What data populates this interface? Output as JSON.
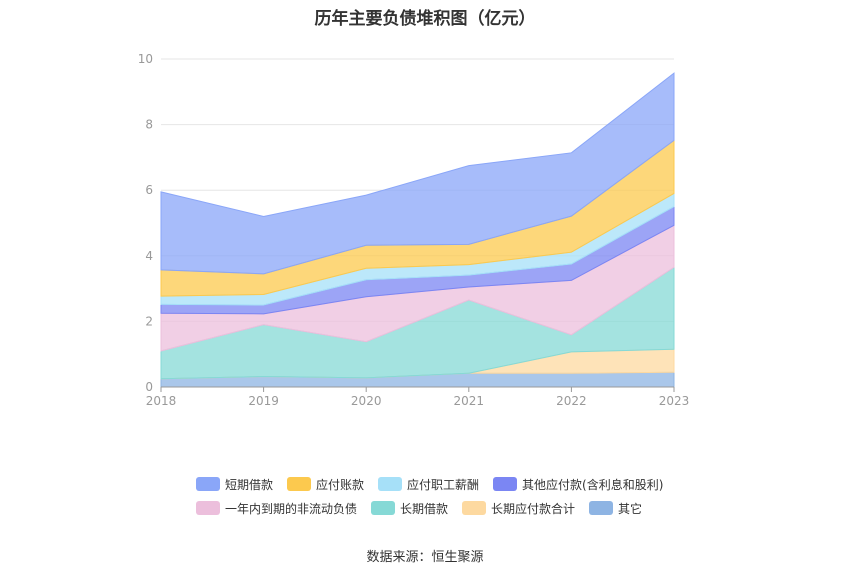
{
  "chart_data": {
    "type": "area",
    "stacked": true,
    "title": "历年主要负债堆积图（亿元）",
    "x": [
      "2018",
      "2019",
      "2020",
      "2021",
      "2022",
      "2023"
    ],
    "ylim": [
      0,
      10
    ],
    "yticks": [
      "0",
      "2",
      "4",
      "6",
      "8",
      "10"
    ],
    "grid": true,
    "legend_position": "bottom",
    "series": [
      {
        "name": "其它",
        "color": "#8eb4e3",
        "values": [
          0.25,
          0.32,
          0.28,
          0.42,
          0.42,
          0.45
        ]
      },
      {
        "name": "长期应付款合计",
        "color": "#fdd9a0",
        "values": [
          0.0,
          0.0,
          0.0,
          0.0,
          0.65,
          0.7
        ]
      },
      {
        "name": "长期借款",
        "color": "#86d9d6",
        "values": [
          0.85,
          1.58,
          1.1,
          2.23,
          0.52,
          2.5
        ]
      },
      {
        "name": "一年内到期的非流动负债",
        "color": "#ecbfdc",
        "values": [
          1.15,
          0.33,
          1.37,
          0.4,
          1.66,
          1.28
        ]
      },
      {
        "name": "其他应付款(含利息和股利)",
        "color": "#7b86f3",
        "values": [
          0.27,
          0.27,
          0.52,
          0.36,
          0.5,
          0.57
        ]
      },
      {
        "name": "应付职工薪酬",
        "color": "#a6e0f8",
        "values": [
          0.25,
          0.32,
          0.35,
          0.32,
          0.36,
          0.4
        ]
      },
      {
        "name": "应付账款",
        "color": "#fcc94e",
        "values": [
          0.8,
          0.63,
          0.7,
          0.62,
          1.1,
          1.62
        ]
      },
      {
        "name": "短期借款",
        "color": "#8aa6f8",
        "values": [
          2.38,
          1.75,
          1.53,
          2.4,
          1.93,
          2.05
        ]
      }
    ],
    "legend_rows": [
      [
        "短期借款",
        "应付账款",
        "应付职工薪酬",
        "其他应付款(含利息和股利)"
      ],
      [
        "一年内到期的非流动负债",
        "长期借款",
        "长期应付款合计",
        "其它"
      ]
    ]
  },
  "source": "数据来源：恒生聚源"
}
